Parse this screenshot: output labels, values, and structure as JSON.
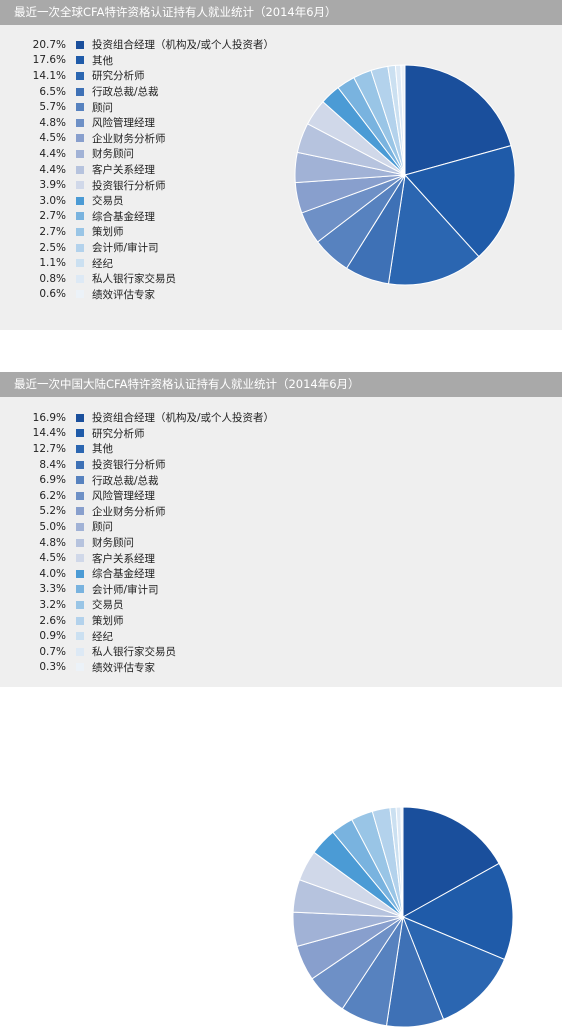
{
  "colors": [
    "#1a53a0",
    "#1e5aa8",
    "#2a66b0",
    "#3d70b5",
    "#5a82c0",
    "#7391c6",
    "#8da3cf",
    "#a4b4d8",
    "#bac6e1",
    "#cfd8ea",
    "#4a9ad4",
    "#78b3e0",
    "#98c4e6",
    "#b5d3ec",
    "#cfe2f2",
    "#e2ecf6",
    "#eef3f9"
  ],
  "chart_data": [
    {
      "type": "pie",
      "title": "最近一次全球CFA特许资格认证持有人就业统计（2014年6月）",
      "labels": [
        "20.7%",
        "17.6%",
        "14.1%",
        "6.5%",
        "5.7%",
        "4.8%",
        "4.5%",
        "4.4%",
        "4.4%",
        "3.9%",
        "3.0%",
        "2.7%",
        "2.7%",
        "2.5%",
        "1.1%",
        "0.8%",
        "0.6%"
      ],
      "categories": [
        "投资组合经理（机构及/或个人投资者）",
        "其他",
        "研究分析师",
        "行政总裁/总裁",
        "顾问",
        "风险管理经理",
        "企业财务分析师",
        "财务顾问",
        "客户关系经理",
        "投资银行分析师",
        "交易员",
        "综合基金经理",
        "策划师",
        "会计师/审计司",
        "经纪",
        "私人银行家交易员",
        "绩效评估专家"
      ],
      "values": [
        20.7,
        17.6,
        14.1,
        6.5,
        5.7,
        4.8,
        4.5,
        4.4,
        4.4,
        3.9,
        3.0,
        2.7,
        2.7,
        2.5,
        1.1,
        0.8,
        0.6
      ],
      "colors": [
        "#1a4f9c",
        "#1f5ba9",
        "#2b66b1",
        "#3e71b6",
        "#5782bf",
        "#6e90c6",
        "#889fcd",
        "#a1b2d6",
        "#b6c3de",
        "#d0d8e9",
        "#4b9bd5",
        "#79b3df",
        "#99c5e6",
        "#b3d2ec",
        "#cbe0f1",
        "#dde9f5",
        "#ecf2f8"
      ]
    },
    {
      "type": "pie",
      "title": "最近一次中国大陆CFA特许资格认证持有人就业统计（2014年6月）",
      "labels": [
        "16.9%",
        "14.4%",
        "12.7%",
        "8.4%",
        "6.9%",
        "6.2%",
        "5.2%",
        "5.0%",
        "4.8%",
        "4.5%",
        "4.0%",
        "3.3%",
        "3.2%",
        "2.6%",
        "0.9%",
        "0.7%",
        "0.3%"
      ],
      "categories": [
        "投资组合经理（机构及/或个人投资者）",
        "研究分析师",
        "其他",
        "投资银行分析师",
        "行政总裁/总裁",
        "风险管理经理",
        "企业财务分析师",
        "顾问",
        "财务顾问",
        "客户关系经理",
        "综合基金经理",
        "会计师/审计司",
        "交易员",
        "策划师",
        "经纪",
        "私人银行家交易员",
        "绩效评估专家"
      ],
      "values": [
        16.9,
        14.4,
        12.7,
        8.4,
        6.9,
        6.2,
        5.2,
        5.0,
        4.8,
        4.5,
        4.0,
        3.3,
        3.2,
        2.6,
        0.9,
        0.7,
        0.3
      ],
      "colors": [
        "#1a4f9c",
        "#1f5ba9",
        "#2b66b1",
        "#3e71b6",
        "#5782bf",
        "#6e90c6",
        "#889fcd",
        "#a1b2d6",
        "#b6c3de",
        "#d0d8e9",
        "#4b9bd5",
        "#79b3df",
        "#99c5e6",
        "#b3d2ec",
        "#cbe0f1",
        "#dde9f5",
        "#ecf2f8"
      ]
    }
  ]
}
